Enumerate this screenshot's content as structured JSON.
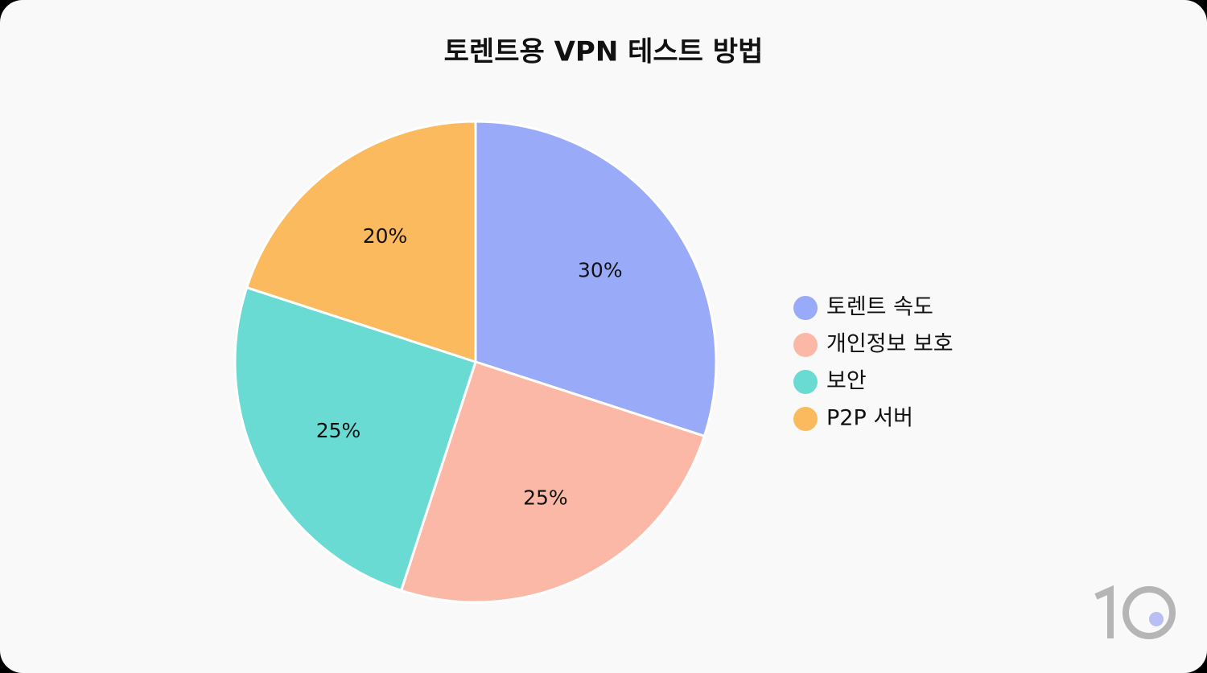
{
  "chart_data": {
    "type": "pie",
    "title": "토렌트용 VPN 테스트 방법",
    "categories": [
      "토렌트 속도",
      "개인정보 보호",
      "보안",
      "P2P 서버"
    ],
    "values": [
      30,
      25,
      25,
      20
    ],
    "value_labels": [
      "30%",
      "25%",
      "25%",
      "20%"
    ],
    "colors": [
      "#99abf8",
      "#fbb8a7",
      "#6adbd3",
      "#fbba5e"
    ],
    "legend": "right"
  }
}
